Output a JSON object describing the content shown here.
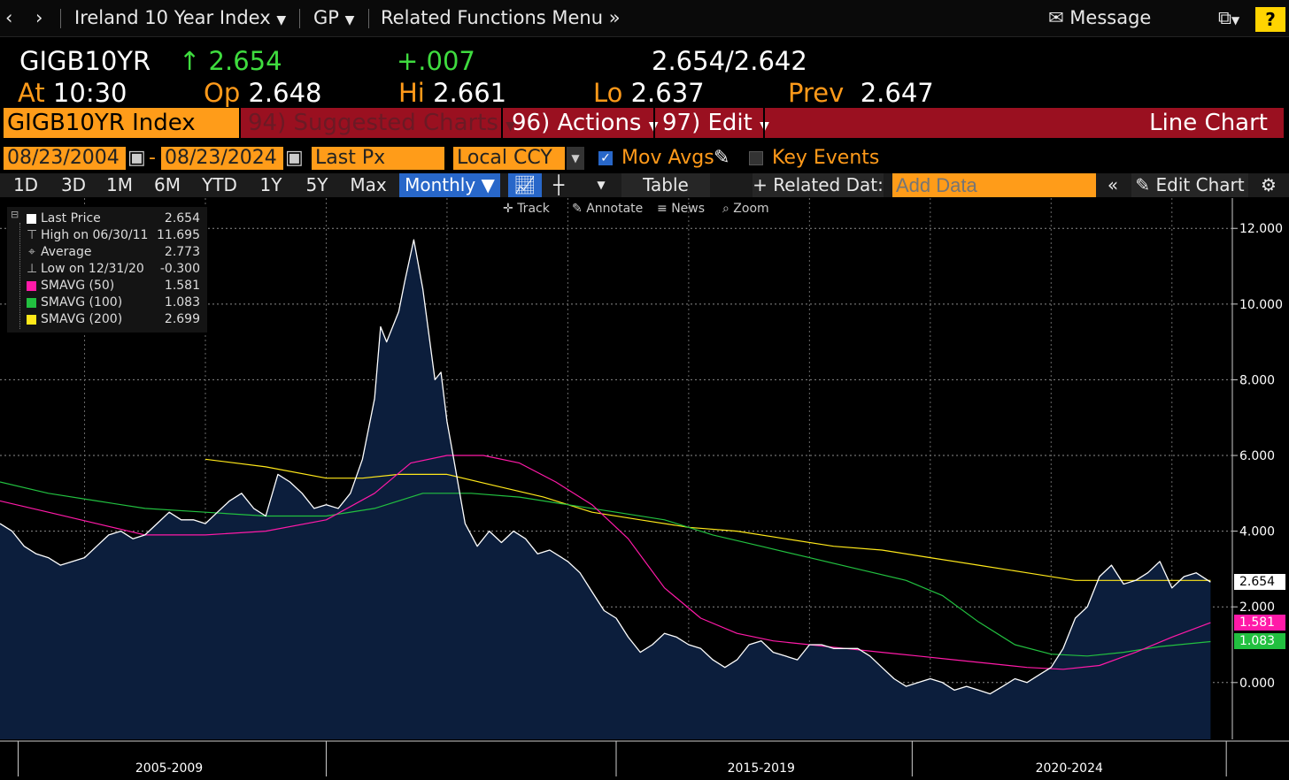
{
  "nav": {
    "back": "‹",
    "forward": "›",
    "security": "Ireland 10 Year Index",
    "function": "GP",
    "related": "Related Functions Menu",
    "message": "Message",
    "help": "?"
  },
  "quote": {
    "ticker": "GIGB10YR",
    "last": "2.654",
    "change": "+.007",
    "bid_ask": "2.654/2.642",
    "at_label": "At",
    "at_value": "10:30",
    "open_label": "Op",
    "open_value": "2.648",
    "high_label": "Hi",
    "high_value": "2.661",
    "low_label": "Lo",
    "low_value": "2.637",
    "prev_label": "Prev",
    "prev_value": "2.647"
  },
  "function_bar": {
    "security_box": "GIGB10YR Index",
    "suggested": "94) Suggested Charts",
    "actions": "96) Actions",
    "edit": "97) Edit",
    "title": "Line Chart"
  },
  "params": {
    "start_date": "08/23/2004",
    "dash": "-",
    "end_date": "08/23/2024",
    "field": "Last Px",
    "currency": "Local CCY",
    "mov_avgs": "Mov Avgs",
    "key_events": "Key Events"
  },
  "toolbar": {
    "periods": [
      "1D",
      "3D",
      "1M",
      "6M",
      "YTD",
      "1Y",
      "5Y",
      "Max"
    ],
    "frequency": "Monthly",
    "table": "Table",
    "related_data": "Related Dat:",
    "add_data_placeholder": "Add Data",
    "edit_chart": "Edit Chart"
  },
  "subtools": {
    "track": "Track",
    "annotate": "Annotate",
    "news": "News",
    "zoom": "Zoom"
  },
  "legend": [
    {
      "name": "Last Price",
      "value": "2.654",
      "color": "#ffffff",
      "kind": "swatch"
    },
    {
      "name": "High on 06/30/11",
      "value": "11.695",
      "kind": "high"
    },
    {
      "name": "Average",
      "value": "2.773",
      "kind": "avg"
    },
    {
      "name": "Low on 12/31/20",
      "value": "-0.300",
      "kind": "low"
    },
    {
      "name": "SMAVG (50)",
      "value": "1.581",
      "color": "#ff1aa8",
      "kind": "swatch"
    },
    {
      "name": "SMAVG (100)",
      "value": "1.083",
      "color": "#22c040",
      "kind": "swatch"
    },
    {
      "name": "SMAVG (200)",
      "value": "2.699",
      "color": "#ffe81a",
      "kind": "swatch"
    }
  ],
  "right_tags": [
    {
      "value": "2.654",
      "bg": "#ffffff",
      "fg": "#000000",
      "y": 2.654
    },
    {
      "value": "1.581",
      "bg": "#ff1aa8",
      "fg": "#ffffff",
      "y": 1.581
    },
    {
      "value": "1.083",
      "bg": "#22c040",
      "fg": "#ffffff",
      "y": 1.083
    }
  ],
  "chart_data": {
    "type": "area",
    "ylim": [
      -1.5,
      12.8
    ],
    "y_ticks": [
      0,
      2,
      4,
      6,
      8,
      10,
      12
    ],
    "y_tick_labels": [
      "0.000",
      "2.000",
      "4.000",
      "6.000",
      "8.000",
      "10.000",
      "12.000"
    ],
    "x_ticks": [
      "2005-2009",
      "2015-2019",
      "2020-2024"
    ],
    "x_range": [
      2004.6,
      2025.0
    ],
    "colors": {
      "price_line": "#ffffff",
      "price_fill": "#0c1e3c",
      "sma50": "#ff1aa8",
      "sma100": "#22c040",
      "sma200": "#ffe81a"
    },
    "series": [
      {
        "name": "Last Price",
        "points": [
          [
            2004.6,
            4.2
          ],
          [
            2004.8,
            4.0
          ],
          [
            2005.0,
            3.6
          ],
          [
            2005.2,
            3.4
          ],
          [
            2005.4,
            3.3
          ],
          [
            2005.6,
            3.1
          ],
          [
            2005.8,
            3.2
          ],
          [
            2006.0,
            3.3
          ],
          [
            2006.2,
            3.6
          ],
          [
            2006.4,
            3.9
          ],
          [
            2006.6,
            4.0
          ],
          [
            2006.8,
            3.8
          ],
          [
            2007.0,
            3.9
          ],
          [
            2007.2,
            4.2
          ],
          [
            2007.4,
            4.5
          ],
          [
            2007.6,
            4.3
          ],
          [
            2007.8,
            4.3
          ],
          [
            2008.0,
            4.2
          ],
          [
            2008.2,
            4.5
          ],
          [
            2008.4,
            4.8
          ],
          [
            2008.6,
            5.0
          ],
          [
            2008.8,
            4.6
          ],
          [
            2009.0,
            4.4
          ],
          [
            2009.2,
            5.5
          ],
          [
            2009.4,
            5.3
          ],
          [
            2009.6,
            5.0
          ],
          [
            2009.8,
            4.6
          ],
          [
            2010.0,
            4.7
          ],
          [
            2010.2,
            4.6
          ],
          [
            2010.4,
            5.0
          ],
          [
            2010.6,
            5.9
          ],
          [
            2010.8,
            7.5
          ],
          [
            2010.9,
            9.4
          ],
          [
            2011.0,
            9.0
          ],
          [
            2011.2,
            9.8
          ],
          [
            2011.3,
            10.6
          ],
          [
            2011.45,
            11.7
          ],
          [
            2011.6,
            10.4
          ],
          [
            2011.8,
            8.0
          ],
          [
            2011.9,
            8.2
          ],
          [
            2012.0,
            6.9
          ],
          [
            2012.1,
            6.0
          ],
          [
            2012.3,
            4.2
          ],
          [
            2012.5,
            3.6
          ],
          [
            2012.7,
            4.0
          ],
          [
            2012.9,
            3.7
          ],
          [
            2013.1,
            4.0
          ],
          [
            2013.3,
            3.8
          ],
          [
            2013.5,
            3.4
          ],
          [
            2013.7,
            3.5
          ],
          [
            2013.9,
            3.3
          ],
          [
            2014.0,
            3.2
          ],
          [
            2014.2,
            2.9
          ],
          [
            2014.4,
            2.4
          ],
          [
            2014.6,
            1.9
          ],
          [
            2014.8,
            1.7
          ],
          [
            2015.0,
            1.2
          ],
          [
            2015.2,
            0.8
          ],
          [
            2015.4,
            1.0
          ],
          [
            2015.6,
            1.3
          ],
          [
            2015.8,
            1.2
          ],
          [
            2016.0,
            1.0
          ],
          [
            2016.2,
            0.9
          ],
          [
            2016.4,
            0.6
          ],
          [
            2016.6,
            0.4
          ],
          [
            2016.8,
            0.6
          ],
          [
            2017.0,
            1.0
          ],
          [
            2017.2,
            1.1
          ],
          [
            2017.4,
            0.8
          ],
          [
            2017.6,
            0.7
          ],
          [
            2017.8,
            0.6
          ],
          [
            2018.0,
            1.0
          ],
          [
            2018.2,
            1.0
          ],
          [
            2018.4,
            0.9
          ],
          [
            2018.6,
            0.9
          ],
          [
            2018.8,
            0.9
          ],
          [
            2019.0,
            0.7
          ],
          [
            2019.2,
            0.4
          ],
          [
            2019.4,
            0.1
          ],
          [
            2019.6,
            -0.1
          ],
          [
            2019.8,
            0.0
          ],
          [
            2020.0,
            0.1
          ],
          [
            2020.2,
            0.0
          ],
          [
            2020.4,
            -0.2
          ],
          [
            2020.6,
            -0.1
          ],
          [
            2020.8,
            -0.2
          ],
          [
            2020.99,
            -0.3
          ],
          [
            2021.2,
            -0.1
          ],
          [
            2021.4,
            0.1
          ],
          [
            2021.6,
            0.0
          ],
          [
            2021.8,
            0.2
          ],
          [
            2022.0,
            0.4
          ],
          [
            2022.2,
            0.9
          ],
          [
            2022.4,
            1.7
          ],
          [
            2022.6,
            2.0
          ],
          [
            2022.8,
            2.8
          ],
          [
            2023.0,
            3.1
          ],
          [
            2023.2,
            2.6
          ],
          [
            2023.4,
            2.7
          ],
          [
            2023.6,
            2.9
          ],
          [
            2023.8,
            3.2
          ],
          [
            2024.0,
            2.5
          ],
          [
            2024.2,
            2.8
          ],
          [
            2024.4,
            2.9
          ],
          [
            2024.64,
            2.654
          ]
        ]
      },
      {
        "name": "SMAVG (50)",
        "points": [
          [
            2004.6,
            4.8
          ],
          [
            2005.4,
            4.5
          ],
          [
            2006.2,
            4.2
          ],
          [
            2007.0,
            3.9
          ],
          [
            2008.0,
            3.9
          ],
          [
            2009.0,
            4.0
          ],
          [
            2010.0,
            4.3
          ],
          [
            2010.8,
            5.0
          ],
          [
            2011.4,
            5.8
          ],
          [
            2012.0,
            6.0
          ],
          [
            2012.6,
            6.0
          ],
          [
            2013.2,
            5.8
          ],
          [
            2013.8,
            5.3
          ],
          [
            2014.4,
            4.7
          ],
          [
            2015.0,
            3.8
          ],
          [
            2015.6,
            2.5
          ],
          [
            2016.2,
            1.7
          ],
          [
            2016.8,
            1.3
          ],
          [
            2017.4,
            1.1
          ],
          [
            2018.0,
            1.0
          ],
          [
            2018.6,
            0.9
          ],
          [
            2019.2,
            0.8
          ],
          [
            2019.8,
            0.7
          ],
          [
            2020.4,
            0.6
          ],
          [
            2021.0,
            0.5
          ],
          [
            2021.6,
            0.4
          ],
          [
            2022.2,
            0.35
          ],
          [
            2022.8,
            0.45
          ],
          [
            2023.4,
            0.8
          ],
          [
            2024.0,
            1.2
          ],
          [
            2024.64,
            1.581
          ]
        ]
      },
      {
        "name": "SMAVG (100)",
        "points": [
          [
            2004.6,
            5.3
          ],
          [
            2005.4,
            5.0
          ],
          [
            2006.2,
            4.8
          ],
          [
            2007.0,
            4.6
          ],
          [
            2008.0,
            4.5
          ],
          [
            2009.0,
            4.4
          ],
          [
            2010.0,
            4.4
          ],
          [
            2010.8,
            4.6
          ],
          [
            2011.6,
            5.0
          ],
          [
            2012.4,
            5.0
          ],
          [
            2013.2,
            4.9
          ],
          [
            2014.0,
            4.7
          ],
          [
            2014.8,
            4.5
          ],
          [
            2015.6,
            4.3
          ],
          [
            2016.4,
            3.9
          ],
          [
            2017.2,
            3.6
          ],
          [
            2018.0,
            3.3
          ],
          [
            2018.8,
            3.0
          ],
          [
            2019.6,
            2.7
          ],
          [
            2020.2,
            2.3
          ],
          [
            2020.8,
            1.6
          ],
          [
            2021.4,
            1.0
          ],
          [
            2022.0,
            0.75
          ],
          [
            2022.6,
            0.7
          ],
          [
            2023.2,
            0.8
          ],
          [
            2023.8,
            0.95
          ],
          [
            2024.64,
            1.083
          ]
        ]
      },
      {
        "name": "SMAVG (200)",
        "points": [
          [
            2008.0,
            5.9
          ],
          [
            2009.0,
            5.7
          ],
          [
            2010.0,
            5.4
          ],
          [
            2010.6,
            5.4
          ],
          [
            2011.2,
            5.5
          ],
          [
            2012.0,
            5.5
          ],
          [
            2012.8,
            5.2
          ],
          [
            2013.6,
            4.9
          ],
          [
            2014.4,
            4.5
          ],
          [
            2015.2,
            4.3
          ],
          [
            2016.0,
            4.1
          ],
          [
            2016.8,
            4.0
          ],
          [
            2017.6,
            3.8
          ],
          [
            2018.4,
            3.6
          ],
          [
            2019.2,
            3.5
          ],
          [
            2020.0,
            3.3
          ],
          [
            2020.8,
            3.1
          ],
          [
            2021.6,
            2.9
          ],
          [
            2022.4,
            2.7
          ],
          [
            2023.2,
            2.7
          ],
          [
            2023.8,
            2.7
          ],
          [
            2024.64,
            2.699
          ]
        ]
      }
    ]
  }
}
